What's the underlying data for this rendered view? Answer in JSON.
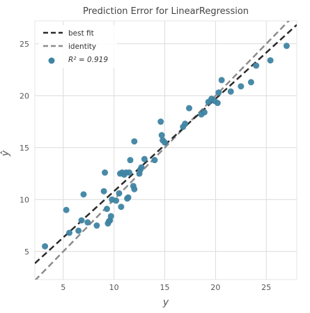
{
  "chart_data": {
    "type": "scatter",
    "title": "Prediction Error for LinearRegression",
    "xlabel": "y",
    "ylabel": "ŷ",
    "xlim": [
      2.2,
      28.0
    ],
    "ylim": [
      2.3,
      27.2
    ],
    "xticks": [
      5,
      10,
      15,
      20,
      25
    ],
    "yticks": [
      5,
      10,
      15,
      20,
      25
    ],
    "grid": true,
    "legend": {
      "position": "top-left",
      "entries": [
        {
          "label": "best fit",
          "kind": "line",
          "color": "#2b2b2b",
          "dash": true
        },
        {
          "label": "identity",
          "kind": "line",
          "color": "#8c8c8c",
          "dash": true
        },
        {
          "label": "R² = 0.919",
          "kind": "marker",
          "color": "#3f84a3"
        }
      ]
    },
    "best_fit": {
      "slope": 0.89,
      "intercept": 1.9
    },
    "identity": {
      "slope": 1.0,
      "intercept": 0.0
    },
    "marker_color": "#3f84a3",
    "points": [
      {
        "x": 3.2,
        "y": 5.5
      },
      {
        "x": 5.3,
        "y": 9.0
      },
      {
        "x": 5.6,
        "y": 6.8
      },
      {
        "x": 6.5,
        "y": 7.0
      },
      {
        "x": 6.8,
        "y": 8.0
      },
      {
        "x": 7.0,
        "y": 10.5
      },
      {
        "x": 7.4,
        "y": 7.8
      },
      {
        "x": 8.3,
        "y": 7.5
      },
      {
        "x": 9.0,
        "y": 10.8
      },
      {
        "x": 9.1,
        "y": 12.6
      },
      {
        "x": 9.3,
        "y": 9.1
      },
      {
        "x": 9.4,
        "y": 7.7
      },
      {
        "x": 9.5,
        "y": 7.9
      },
      {
        "x": 9.6,
        "y": 8.0
      },
      {
        "x": 9.7,
        "y": 8.4
      },
      {
        "x": 9.8,
        "y": 10.0
      },
      {
        "x": 10.2,
        "y": 9.9
      },
      {
        "x": 10.5,
        "y": 10.6
      },
      {
        "x": 10.6,
        "y": 12.5
      },
      {
        "x": 10.7,
        "y": 9.3
      },
      {
        "x": 10.8,
        "y": 12.6
      },
      {
        "x": 11.0,
        "y": 12.4
      },
      {
        "x": 11.2,
        "y": 12.6
      },
      {
        "x": 11.3,
        "y": 10.1
      },
      {
        "x": 11.4,
        "y": 10.2
      },
      {
        "x": 11.5,
        "y": 12.6
      },
      {
        "x": 11.6,
        "y": 13.8
      },
      {
        "x": 11.9,
        "y": 11.3
      },
      {
        "x": 12.0,
        "y": 11.0
      },
      {
        "x": 12.0,
        "y": 15.6
      },
      {
        "x": 12.5,
        "y": 12.5
      },
      {
        "x": 12.6,
        "y": 12.9
      },
      {
        "x": 12.7,
        "y": 13.1
      },
      {
        "x": 13.0,
        "y": 13.9
      },
      {
        "x": 14.0,
        "y": 13.8
      },
      {
        "x": 14.6,
        "y": 17.5
      },
      {
        "x": 14.7,
        "y": 16.2
      },
      {
        "x": 14.8,
        "y": 15.7
      },
      {
        "x": 15.0,
        "y": 15.5
      },
      {
        "x": 16.8,
        "y": 17.0
      },
      {
        "x": 17.0,
        "y": 17.3
      },
      {
        "x": 17.4,
        "y": 18.8
      },
      {
        "x": 18.6,
        "y": 18.2
      },
      {
        "x": 18.9,
        "y": 18.4
      },
      {
        "x": 19.3,
        "y": 19.4
      },
      {
        "x": 19.6,
        "y": 19.7
      },
      {
        "x": 19.9,
        "y": 19.5
      },
      {
        "x": 20.2,
        "y": 19.3
      },
      {
        "x": 20.3,
        "y": 20.3
      },
      {
        "x": 20.6,
        "y": 21.5
      },
      {
        "x": 21.5,
        "y": 20.4
      },
      {
        "x": 22.5,
        "y": 20.9
      },
      {
        "x": 23.5,
        "y": 21.3
      },
      {
        "x": 24.0,
        "y": 22.9
      },
      {
        "x": 25.4,
        "y": 23.4
      },
      {
        "x": 27.0,
        "y": 24.8
      }
    ]
  }
}
